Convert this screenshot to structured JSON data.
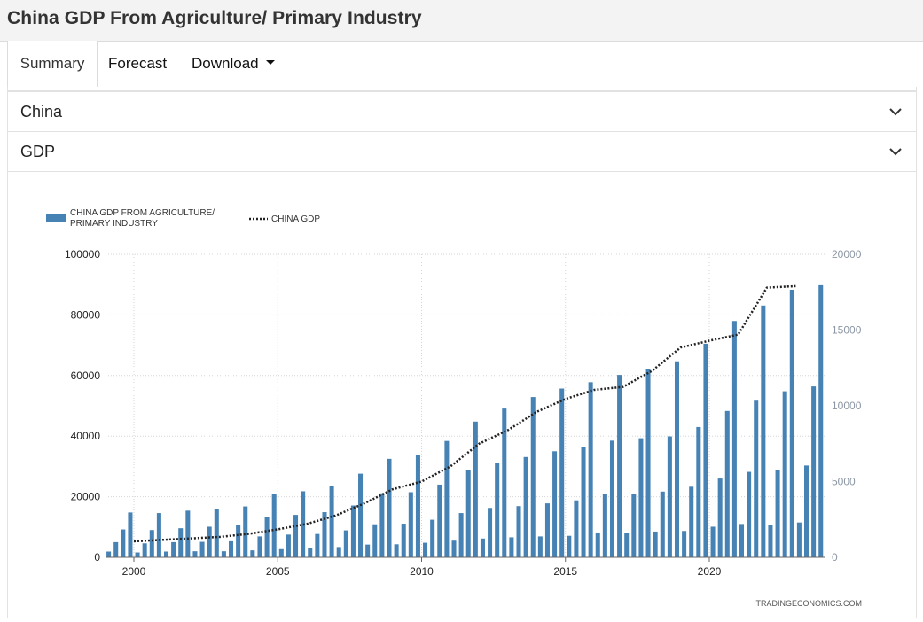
{
  "page": {
    "title": "China GDP From Agriculture/ Primary Industry"
  },
  "tabs": {
    "summary": "Summary",
    "forecast": "Forecast",
    "download": "Download"
  },
  "accordions": {
    "country": "China",
    "indicator": "GDP"
  },
  "chart_data": {
    "type": "bar",
    "title": "",
    "xlabel": "",
    "ylabel": "",
    "ylim": [
      0,
      100000
    ],
    "y2lim": [
      0,
      20000
    ],
    "yticks": [
      "0",
      "20000",
      "40000",
      "60000",
      "80000",
      "100000"
    ],
    "y2ticks": [
      "0",
      "5000",
      "10000",
      "15000",
      "20000"
    ],
    "xticks": [
      "2000",
      "2005",
      "2010",
      "2015",
      "2020"
    ],
    "grid": true,
    "legend_position": "top-left",
    "credit": "TRADINGECONOMICS.COM",
    "bar_color": "#4682b4",
    "line_color": "#222222",
    "series": [
      {
        "name": "CHINA GDP FROM AGRICULTURE/ PRIMARY INDUSTRY",
        "legend_line1": "CHINA GDP FROM AGRICULTURE/",
        "legend_line2": "PRIMARY INDUSTRY",
        "axis": "left",
        "kind": "bar",
        "start": "1999-Q1",
        "values": [
          1900,
          5000,
          9200,
          14800,
          1600,
          4600,
          9000,
          14600,
          1900,
          5000,
          9600,
          15400,
          2000,
          5100,
          10100,
          16000,
          2000,
          5300,
          10800,
          16800,
          2300,
          6900,
          13200,
          20900,
          2700,
          7500,
          14000,
          21800,
          3100,
          7700,
          14900,
          23400,
          3400,
          8900,
          17100,
          27600,
          4200,
          10900,
          21100,
          32500,
          4300,
          11100,
          21500,
          33700,
          4800,
          12400,
          24000,
          38400,
          5500,
          14600,
          28700,
          44800,
          6200,
          16300,
          31100,
          49100,
          6600,
          16900,
          33100,
          52900,
          6900,
          17800,
          35000,
          55700,
          7100,
          18800,
          36500,
          57800,
          8200,
          20900,
          38500,
          60200,
          8000,
          20800,
          39300,
          62100,
          8500,
          21700,
          39900,
          64700,
          8700,
          23300,
          43000,
          70500,
          10100,
          26000,
          48300,
          78000,
          11000,
          28200,
          51700,
          83100,
          10800,
          28800,
          54800,
          88300,
          11500,
          30300,
          56400,
          89800
        ]
      },
      {
        "name": "CHINA GDP",
        "axis": "right",
        "kind": "line",
        "x": [
          2000,
          2001,
          2002,
          2003,
          2004,
          2005,
          2006,
          2007,
          2008,
          2009,
          2010,
          2011,
          2012,
          2013,
          2014,
          2015,
          2016,
          2017,
          2018,
          2019,
          2020,
          2021,
          2022,
          2023
        ],
        "values": [
          1050,
          1150,
          1250,
          1350,
          1550,
          1850,
          2200,
          2750,
          3550,
          4500,
          5000,
          6000,
          7500,
          8400,
          9600,
          10450,
          11050,
          11250,
          12300,
          13850,
          14300,
          14700,
          17800,
          17900
        ]
      }
    ]
  }
}
